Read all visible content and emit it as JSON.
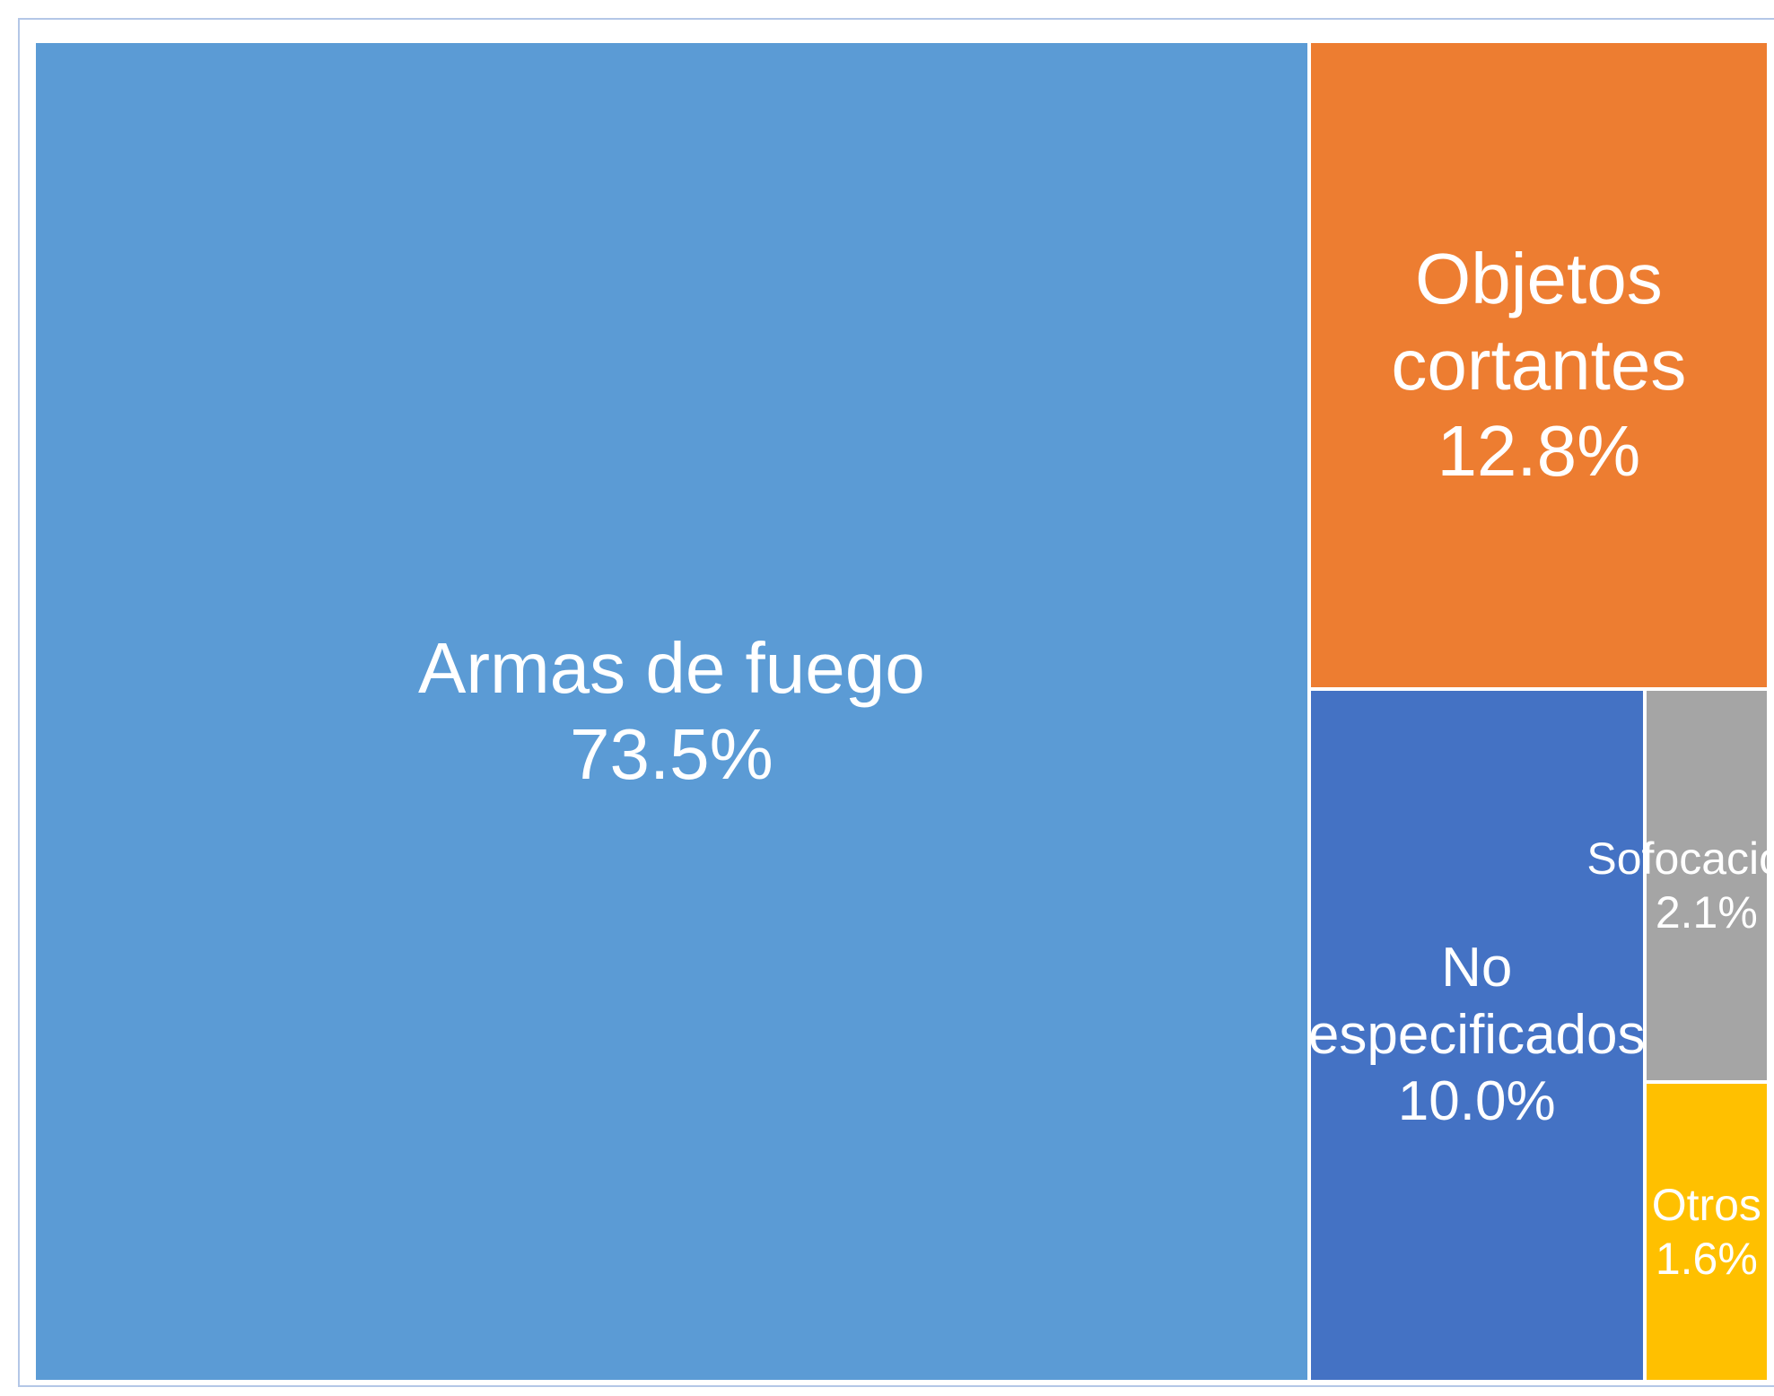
{
  "chart_data": {
    "type": "treemap",
    "categories": [
      "Armas de fuego",
      "Objetos cortantes",
      "No especificados",
      "Sofocación*",
      "Otros"
    ],
    "values": [
      73.5,
      12.8,
      10.0,
      2.1,
      1.6
    ],
    "value_labels": [
      "73.5%",
      "12.8%",
      "10.0%",
      "2.1%",
      "1.6%"
    ],
    "colors": [
      "#5b9bd5",
      "#ed7d31",
      "#4472c4",
      "#a5a5a5",
      "#ffc000"
    ]
  }
}
